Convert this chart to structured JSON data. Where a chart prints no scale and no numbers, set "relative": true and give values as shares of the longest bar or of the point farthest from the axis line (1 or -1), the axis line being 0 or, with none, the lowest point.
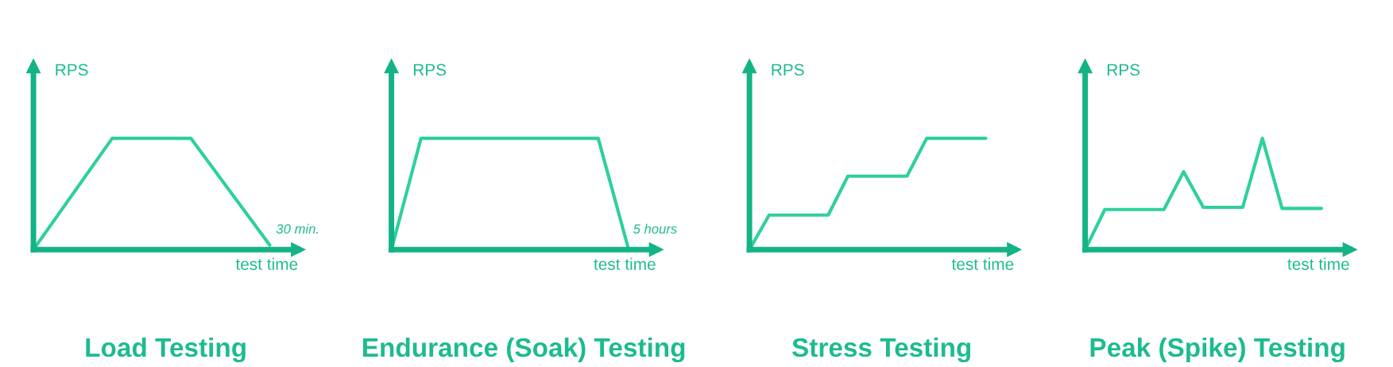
{
  "chart_data": [
    {
      "type": "line",
      "title": "Load Testing",
      "xlabel": "test time",
      "ylabel": "RPS",
      "relative": true,
      "annotations": [
        "30 min."
      ],
      "categories": [
        null,
        null,
        null,
        null
      ],
      "series": [
        {
          "color": "#2fcf9f",
          "values": [
            0,
            1,
            1,
            0.04
          ]
        }
      ]
    },
    {
      "type": "line",
      "title": "Endurance (Soak) Testing",
      "xlabel": "test time",
      "ylabel": "RPS",
      "relative": true,
      "annotations": [
        "5 hours"
      ],
      "categories": [
        null,
        null,
        null,
        null,
        null,
        null,
        null,
        null,
        null
      ],
      "series": [
        {
          "color": "#2fcf9f",
          "values": [
            0,
            1,
            1,
            1,
            1,
            1,
            1,
            1,
            0.03
          ]
        }
      ]
    },
    {
      "type": "line",
      "title": "Stress Testing",
      "xlabel": "test time",
      "ylabel": "RPS",
      "relative": true,
      "categories": [
        null,
        null,
        null,
        null,
        null,
        null,
        null,
        null,
        null,
        null,
        null,
        null,
        null
      ],
      "series": [
        {
          "color": "#2fcf9f",
          "values": [
            0,
            0.31,
            0.31,
            0.31,
            0.31,
            0.66,
            0.66,
            0.66,
            0.66,
            1,
            1,
            1,
            1
          ]
        }
      ]
    },
    {
      "type": "line",
      "title": "Peak (Spike) Testing",
      "xlabel": "test time",
      "ylabel": "RPS",
      "relative": true,
      "categories": [
        null,
        null,
        null,
        null,
        null,
        null,
        null,
        null,
        null,
        null,
        null,
        null,
        null
      ],
      "series": [
        {
          "color": "#2fcf9f",
          "values": [
            0,
            0.36,
            0.36,
            0.36,
            0.36,
            0.7,
            0.38,
            0.38,
            0.38,
            1,
            0.37,
            0.37,
            0.37
          ]
        }
      ]
    }
  ]
}
